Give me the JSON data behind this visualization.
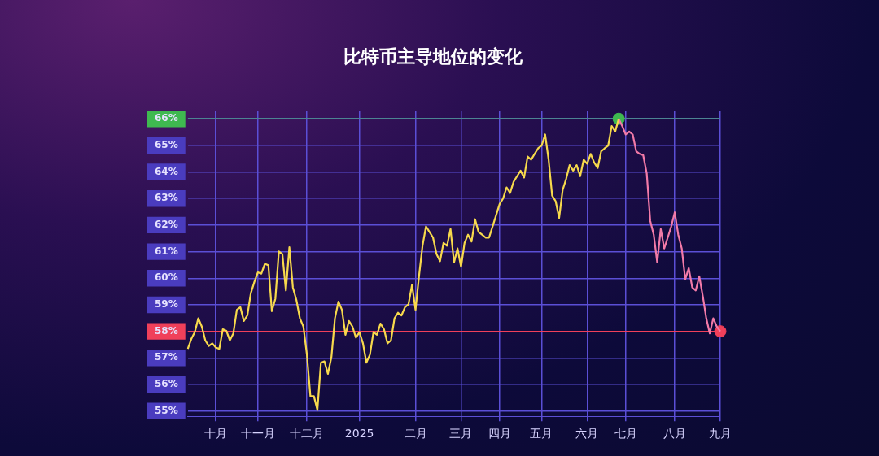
{
  "chart_data": {
    "type": "line",
    "title": "比特币主导地位的变化",
    "categories": [
      null,
      null,
      null,
      null,
      null,
      null,
      null,
      null,
      "十月",
      null,
      null,
      null,
      null,
      null,
      null,
      null,
      null,
      null,
      null,
      null,
      "十一月",
      null,
      null,
      null,
      null,
      null,
      null,
      null,
      null,
      null,
      null,
      null,
      null,
      null,
      "十二月",
      null,
      null,
      null,
      null,
      null,
      null,
      null,
      null,
      null,
      null,
      null,
      null,
      null,
      null,
      "2025",
      null,
      null,
      null,
      null,
      null,
      null,
      null,
      null,
      null,
      null,
      null,
      null,
      null,
      null,
      null,
      "二月",
      null,
      null,
      null,
      null,
      null,
      null,
      null,
      null,
      null,
      null,
      null,
      null,
      "三月",
      null,
      null,
      null,
      null,
      null,
      null,
      null,
      null,
      null,
      null,
      "四月",
      null,
      null,
      null,
      null,
      null,
      null,
      null,
      null,
      null,
      null,
      null,
      "五月",
      null,
      null,
      null,
      null,
      null,
      null,
      null,
      null,
      null,
      null,
      null,
      null,
      "六月",
      null,
      null,
      null,
      null,
      null,
      null,
      null,
      null,
      null,
      null,
      "七月",
      null,
      null,
      null,
      null,
      null,
      null,
      null,
      null,
      null,
      null,
      null,
      null,
      null,
      "八月",
      null,
      null,
      null,
      null,
      null,
      null,
      null,
      null,
      null,
      null,
      null,
      null,
      "九月"
    ],
    "ylim": [
      54.8,
      66.3
    ],
    "yticks": [
      {
        "value": 55,
        "label": "55%"
      },
      {
        "value": 56,
        "label": "56%"
      },
      {
        "value": 57,
        "label": "57%"
      },
      {
        "value": 58,
        "label": "58%"
      },
      {
        "value": 59,
        "label": "59%"
      },
      {
        "value": 60,
        "label": "60%"
      },
      {
        "value": 61,
        "label": "61%"
      },
      {
        "value": 62,
        "label": "62%"
      },
      {
        "value": 63,
        "label": "63%"
      },
      {
        "value": 64,
        "label": "64%"
      },
      {
        "value": 65,
        "label": "65%"
      },
      {
        "value": 66,
        "label": "66%"
      }
    ],
    "grid": true,
    "legend": false,
    "ref_lines": [
      {
        "axis": "y",
        "value": 66,
        "color": "#3fb950"
      },
      {
        "axis": "y",
        "value": 58,
        "color": "#f0405a"
      }
    ],
    "series": [
      {
        "color": "#f7d94c",
        "values": [
          57.34,
          57.71,
          57.97,
          58.49,
          58.18,
          57.66,
          57.45,
          57.55,
          57.39,
          57.34,
          58.08,
          58.02,
          57.66,
          57.92,
          58.81,
          58.91,
          58.39,
          58.6,
          59.44,
          59.86,
          60.22,
          60.17,
          60.54,
          60.49,
          58.76,
          59.23,
          61.01,
          60.91,
          59.54,
          61.17,
          59.65,
          59.18,
          58.49,
          58.18,
          57.13,
          55.56,
          55.56,
          55.04,
          56.82,
          56.87,
          56.4,
          57.03,
          58.49,
          59.12,
          58.81,
          57.87,
          58.39,
          58.18,
          57.76,
          57.97,
          57.55,
          56.82,
          57.13,
          57.97,
          57.87,
          58.29,
          58.08,
          57.55,
          57.66,
          58.49,
          58.7,
          58.6,
          58.91,
          59.02,
          59.75,
          58.81,
          60.07,
          61.22,
          61.95,
          61.74,
          61.53,
          60.91,
          60.64,
          61.33,
          61.22,
          61.85,
          60.59,
          61.12,
          60.43,
          61.33,
          61.64,
          61.38,
          62.22,
          61.74,
          61.64,
          61.53,
          61.53,
          61.95,
          62.37,
          62.79,
          63.0,
          63.42,
          63.21,
          63.63,
          63.84,
          64.05,
          63.79,
          64.58,
          64.46,
          64.68,
          64.89,
          64.99,
          65.41,
          64.46,
          63.11,
          62.9,
          62.27,
          63.32,
          63.74,
          64.26,
          64.05,
          64.26,
          63.84,
          64.46,
          64.31,
          64.68,
          64.36,
          64.15,
          64.78,
          64.89,
          64.99,
          65.73,
          65.52,
          66.0,
          null,
          null,
          null,
          null,
          null,
          null,
          null,
          null,
          null,
          null,
          null,
          null,
          null,
          null,
          null,
          null,
          null,
          null,
          null,
          null,
          null,
          null,
          null,
          null,
          null,
          null,
          null,
          null,
          null
        ]
      },
      {
        "color": "#f27aa8",
        "values": [
          null,
          null,
          null,
          null,
          null,
          null,
          null,
          null,
          null,
          null,
          null,
          null,
          null,
          null,
          null,
          null,
          null,
          null,
          null,
          null,
          null,
          null,
          null,
          null,
          null,
          null,
          null,
          null,
          null,
          null,
          null,
          null,
          null,
          null,
          null,
          null,
          null,
          null,
          null,
          null,
          null,
          null,
          null,
          null,
          null,
          null,
          null,
          null,
          null,
          null,
          null,
          null,
          null,
          null,
          null,
          null,
          null,
          null,
          null,
          null,
          null,
          null,
          null,
          null,
          null,
          null,
          null,
          null,
          null,
          null,
          null,
          null,
          null,
          null,
          null,
          null,
          null,
          null,
          null,
          null,
          null,
          null,
          null,
          null,
          null,
          null,
          null,
          null,
          null,
          null,
          null,
          null,
          null,
          null,
          null,
          null,
          null,
          null,
          null,
          null,
          null,
          null,
          null,
          null,
          null,
          null,
          null,
          null,
          null,
          null,
          null,
          null,
          null,
          null,
          null,
          null,
          null,
          null,
          null,
          null,
          null,
          null,
          null,
          66.0,
          65.73,
          65.41,
          65.52,
          65.41,
          64.78,
          64.68,
          64.63,
          63.95,
          62.16,
          61.64,
          60.59,
          61.85,
          61.12,
          61.53,
          61.95,
          62.48,
          61.64,
          61.12,
          59.96,
          60.38,
          59.65,
          59.54,
          60.07,
          59.33,
          58.49,
          57.92,
          58.49,
          58.18,
          58.0
        ]
      },
      {
        "type": "scatter",
        "color": "#3fb950",
        "values": [
          null,
          null,
          null,
          null,
          null,
          null,
          null,
          null,
          null,
          null,
          null,
          null,
          null,
          null,
          null,
          null,
          null,
          null,
          null,
          null,
          null,
          null,
          null,
          null,
          null,
          null,
          null,
          null,
          null,
          null,
          null,
          null,
          null,
          null,
          null,
          null,
          null,
          null,
          null,
          null,
          null,
          null,
          null,
          null,
          null,
          null,
          null,
          null,
          null,
          null,
          null,
          null,
          null,
          null,
          null,
          null,
          null,
          null,
          null,
          null,
          null,
          null,
          null,
          null,
          null,
          null,
          null,
          null,
          null,
          null,
          null,
          null,
          null,
          null,
          null,
          null,
          null,
          null,
          null,
          null,
          null,
          null,
          null,
          null,
          null,
          null,
          null,
          null,
          null,
          null,
          null,
          null,
          null,
          null,
          null,
          null,
          null,
          null,
          null,
          null,
          null,
          null,
          null,
          null,
          null,
          null,
          null,
          null,
          null,
          null,
          null,
          null,
          null,
          null,
          null,
          null,
          null,
          null,
          null,
          null,
          null,
          null,
          null,
          66.0,
          null,
          null,
          null,
          null,
          null,
          null,
          null,
          null,
          null,
          null,
          null,
          null,
          null,
          null,
          null,
          null,
          null,
          null,
          null,
          null,
          null,
          null,
          null,
          null,
          null,
          null,
          null,
          null,
          null
        ]
      },
      {
        "type": "scatter",
        "color": "#f0405a",
        "values": [
          null,
          null,
          null,
          null,
          null,
          null,
          null,
          null,
          null,
          null,
          null,
          null,
          null,
          null,
          null,
          null,
          null,
          null,
          null,
          null,
          null,
          null,
          null,
          null,
          null,
          null,
          null,
          null,
          null,
          null,
          null,
          null,
          null,
          null,
          null,
          null,
          null,
          null,
          null,
          null,
          null,
          null,
          null,
          null,
          null,
          null,
          null,
          null,
          null,
          null,
          null,
          null,
          null,
          null,
          null,
          null,
          null,
          null,
          null,
          null,
          null,
          null,
          null,
          null,
          null,
          null,
          null,
          null,
          null,
          null,
          null,
          null,
          null,
          null,
          null,
          null,
          null,
          null,
          null,
          null,
          null,
          null,
          null,
          null,
          null,
          null,
          null,
          null,
          null,
          null,
          null,
          null,
          null,
          null,
          null,
          null,
          null,
          null,
          null,
          null,
          null,
          null,
          null,
          null,
          null,
          null,
          null,
          null,
          null,
          null,
          null,
          null,
          null,
          null,
          null,
          null,
          null,
          null,
          null,
          null,
          null,
          null,
          null,
          null,
          null,
          null,
          null,
          null,
          null,
          null,
          null,
          null,
          null,
          null,
          null,
          null,
          null,
          null,
          null,
          null,
          null,
          null,
          null,
          null,
          null,
          null,
          null,
          null,
          null,
          null,
          null,
          null,
          58.0
        ]
      }
    ]
  }
}
